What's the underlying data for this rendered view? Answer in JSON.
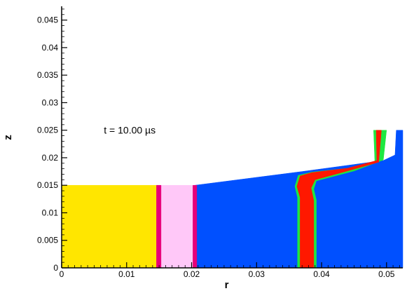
{
  "chart_data": {
    "type": "heatmap",
    "title": "",
    "xlabel": "r",
    "ylabel": "z",
    "xlim": [
      0,
      0.0525
    ],
    "ylim": [
      0,
      0.0475
    ],
    "x_ticks": [
      {
        "v": 0,
        "label": "0"
      },
      {
        "v": 0.01,
        "label": "0.01"
      },
      {
        "v": 0.02,
        "label": "0.02"
      },
      {
        "v": 0.03,
        "label": "0.03"
      },
      {
        "v": 0.04,
        "label": "0.04"
      },
      {
        "v": 0.05,
        "label": "0.05"
      }
    ],
    "y_ticks": [
      {
        "v": 0,
        "label": "0"
      },
      {
        "v": 0.005,
        "label": "0.005"
      },
      {
        "v": 0.01,
        "label": "0.01"
      },
      {
        "v": 0.015,
        "label": "0.015"
      },
      {
        "v": 0.02,
        "label": "0.02"
      },
      {
        "v": 0.025,
        "label": "0.025"
      },
      {
        "v": 0.03,
        "label": "0.03"
      },
      {
        "v": 0.035,
        "label": "0.035"
      },
      {
        "v": 0.04,
        "label": "0.04"
      },
      {
        "v": 0.045,
        "label": "0.045"
      }
    ],
    "annotation": "t = 10.00 µs",
    "annotation_pos": {
      "x": 0.0065,
      "y": 0.025
    },
    "colors": {
      "yellow": "#ffe600",
      "pink": "#ffc8f8",
      "magenta": "#e8007a",
      "blue": "#0050ff",
      "red": "#ff1800",
      "green": "#1ee840"
    },
    "regions": [
      {
        "name": "yellow-region",
        "color": "yellow",
        "points": [
          [
            0,
            0
          ],
          [
            0.0148,
            0
          ],
          [
            0.0148,
            0.015
          ],
          [
            0,
            0.015
          ]
        ]
      },
      {
        "name": "pink-region",
        "color": "pink",
        "points": [
          [
            0.0148,
            0
          ],
          [
            0.0205,
            0
          ],
          [
            0.0205,
            0.015
          ],
          [
            0.0148,
            0.015
          ]
        ]
      },
      {
        "name": "blue-region",
        "color": "blue",
        "points": [
          [
            0.0205,
            0
          ],
          [
            0.0525,
            0
          ],
          [
            0.0525,
            0.025
          ],
          [
            0.0515,
            0.025
          ],
          [
            0.0513,
            0.0205
          ],
          [
            0.0495,
            0.0195
          ],
          [
            0.037,
            0.0175
          ],
          [
            0.0205,
            0.015
          ]
        ]
      },
      {
        "name": "magenta-interface-left",
        "color": "magenta",
        "points": [
          [
            0.0146,
            0
          ],
          [
            0.0153,
            0
          ],
          [
            0.0153,
            0.015
          ],
          [
            0.0146,
            0.015
          ]
        ]
      },
      {
        "name": "magenta-interface-right",
        "color": "magenta",
        "points": [
          [
            0.0202,
            0
          ],
          [
            0.0208,
            0
          ],
          [
            0.0208,
            0.015
          ],
          [
            0.0202,
            0.015
          ]
        ]
      },
      {
        "name": "green-band-column",
        "color": "green",
        "points": [
          [
            0.0363,
            0
          ],
          [
            0.0392,
            0
          ],
          [
            0.0392,
            0.0123
          ],
          [
            0.0388,
            0.0143
          ],
          [
            0.0392,
            0.0158
          ],
          [
            0.045,
            0.0176
          ],
          [
            0.0495,
            0.0196
          ],
          [
            0.05,
            0.025
          ],
          [
            0.048,
            0.025
          ],
          [
            0.0482,
            0.0193
          ],
          [
            0.045,
            0.0182
          ],
          [
            0.0385,
            0.0174
          ],
          [
            0.0364,
            0.0168
          ],
          [
            0.0359,
            0.0148
          ],
          [
            0.0363,
            0.0128
          ]
        ]
      },
      {
        "name": "red-band-column",
        "color": "red",
        "points": [
          [
            0.0367,
            0
          ],
          [
            0.0388,
            0
          ],
          [
            0.0388,
            0.0122
          ],
          [
            0.0384,
            0.0145
          ],
          [
            0.039,
            0.016
          ],
          [
            0.044,
            0.0176
          ],
          [
            0.0488,
            0.0192
          ],
          [
            0.0492,
            0.025
          ],
          [
            0.0484,
            0.025
          ],
          [
            0.0485,
            0.0195
          ],
          [
            0.044,
            0.0181
          ],
          [
            0.0385,
            0.0173
          ],
          [
            0.0367,
            0.0167
          ],
          [
            0.0362,
            0.0148
          ],
          [
            0.0367,
            0.0128
          ]
        ]
      }
    ]
  }
}
